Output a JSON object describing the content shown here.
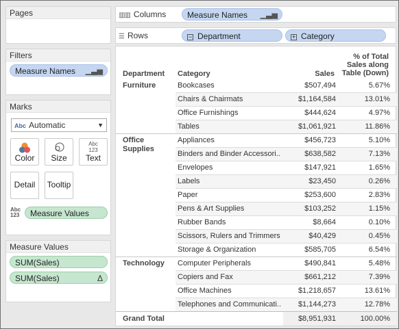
{
  "pages": {
    "title": "Pages"
  },
  "filters": {
    "title": "Filters",
    "pill": "Measure Names"
  },
  "marks": {
    "title": "Marks",
    "type_select": "Automatic",
    "type_abbr": "Abc",
    "buttons": [
      "Color",
      "Size",
      "Text",
      "Detail",
      "Tooltip"
    ],
    "text_icon_line1": "Abc",
    "text_icon_line2": "123",
    "measure_pill": "Measure Values"
  },
  "measure_values": {
    "title": "Measure Values",
    "items": [
      "SUM(Sales)",
      "SUM(Sales)"
    ],
    "delta_symbol": "Δ"
  },
  "shelves": {
    "columns_label": "Columns",
    "columns_pill": "Measure Names",
    "rows_label": "Rows",
    "rows_pills": [
      "Department",
      "Category"
    ]
  },
  "table": {
    "headers": {
      "department": "Department",
      "category": "Category",
      "sales": "Sales",
      "pct_line1": "% of Total",
      "pct_line2": "Sales along",
      "pct_line3": "Table (Down)"
    },
    "groups": [
      {
        "department_line1": "Furniture",
        "department_line2": "",
        "rows": [
          {
            "category": "Bookcases",
            "sales": "$507,494",
            "pct": "5.67%"
          },
          {
            "category": "Chairs & Chairmats",
            "sales": "$1,164,584",
            "pct": "13.01%"
          },
          {
            "category": "Office Furnishings",
            "sales": "$444,624",
            "pct": "4.97%"
          },
          {
            "category": "Tables",
            "sales": "$1,061,921",
            "pct": "11.86%"
          }
        ]
      },
      {
        "department_line1": "Office",
        "department_line2": "Supplies",
        "rows": [
          {
            "category": "Appliances",
            "sales": "$456,723",
            "pct": "5.10%"
          },
          {
            "category": "Binders and Binder Accessori..",
            "sales": "$638,582",
            "pct": "7.13%"
          },
          {
            "category": "Envelopes",
            "sales": "$147,921",
            "pct": "1.65%"
          },
          {
            "category": "Labels",
            "sales": "$23,450",
            "pct": "0.26%"
          },
          {
            "category": "Paper",
            "sales": "$253,600",
            "pct": "2.83%"
          },
          {
            "category": "Pens & Art Supplies",
            "sales": "$103,252",
            "pct": "1.15%"
          },
          {
            "category": "Rubber Bands",
            "sales": "$8,664",
            "pct": "0.10%"
          },
          {
            "category": "Scissors, Rulers and Trimmers",
            "sales": "$40,429",
            "pct": "0.45%"
          },
          {
            "category": "Storage & Organization",
            "sales": "$585,705",
            "pct": "6.54%"
          }
        ]
      },
      {
        "department_line1": "Technology",
        "department_line2": "",
        "rows": [
          {
            "category": "Computer Peripherals",
            "sales": "$490,841",
            "pct": "5.48%"
          },
          {
            "category": "Copiers and Fax",
            "sales": "$661,212",
            "pct": "7.39%"
          },
          {
            "category": "Office Machines",
            "sales": "$1,218,657",
            "pct": "13.61%"
          },
          {
            "category": "Telephones and Communicati..",
            "sales": "$1,144,273",
            "pct": "12.78%"
          }
        ]
      }
    ],
    "grand_total": {
      "label": "Grand Total",
      "sales": "$8,951,931",
      "pct": "100.00%"
    }
  },
  "colors": {
    "blue_pill": "#c5d6f1",
    "green_pill": "#c6e6cf"
  }
}
